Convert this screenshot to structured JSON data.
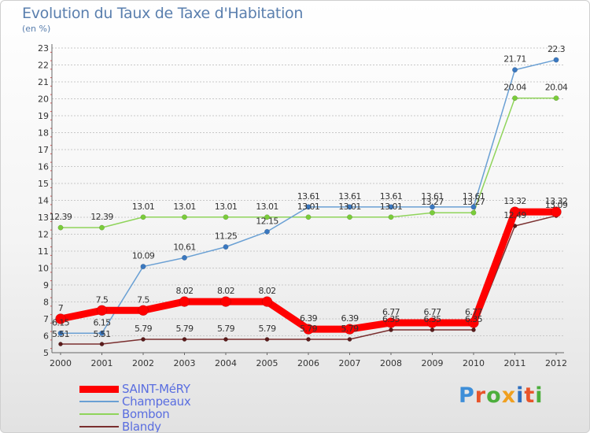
{
  "title": "Evolution du Taux de Taxe d'Habitation",
  "subtitle": "(en %)",
  "logo": {
    "text": "Proxiti",
    "letter_colors": [
      "#3e8ed8",
      "#e8542a",
      "#4cae3c",
      "#f0a020",
      "#2e6fc0",
      "#e8542a",
      "#4cae3c"
    ]
  },
  "chart_data": {
    "type": "line",
    "title": "Evolution du Taux de Taxe d'Habitation",
    "ylabel": "(en %)",
    "xlabel": "",
    "x": [
      "2000",
      "2001",
      "2002",
      "2003",
      "2004",
      "2005",
      "2006",
      "2007",
      "2008",
      "2009",
      "2010",
      "2011",
      "2012"
    ],
    "ylim": [
      5,
      23
    ],
    "yticks": [
      "5",
      "6",
      "7",
      "8",
      "9",
      "10",
      "11",
      "12",
      "13",
      "14",
      "15",
      "16",
      "17",
      "18",
      "19",
      "20",
      "21",
      "22",
      "23"
    ],
    "grid": "horizontal dashed",
    "legend_position": "bottom-left",
    "series": [
      {
        "name": "Blandy",
        "color": "#7a2f2f",
        "values": [
          5.51,
          5.51,
          5.79,
          5.79,
          5.79,
          5.79,
          5.79,
          5.79,
          6.35,
          6.35,
          6.35,
          12.49,
          13.09
        ],
        "labels": [
          "5.51",
          "5.51",
          "5.79",
          "5.79",
          "5.79",
          "5.79",
          "5.79",
          "5.79",
          "6.35",
          "6.35",
          "6.35",
          "12.49",
          "13.09"
        ],
        "show_labels": [
          false,
          false,
          true,
          true,
          true,
          true,
          true,
          true,
          true,
          true,
          true,
          true,
          true
        ]
      },
      {
        "name": "Bombon",
        "color": "#8fd45a",
        "values": [
          12.39,
          12.39,
          13.01,
          13.01,
          13.01,
          13.01,
          13.01,
          13.01,
          13.01,
          13.27,
          13.27,
          20.04,
          20.04
        ],
        "labels": [
          "12.39",
          "12.39",
          "13.01",
          "13.01",
          "13.01",
          "13.01",
          "13.01",
          "13.01",
          "13.01",
          "13.27",
          "13.27",
          "20.04",
          "20.04"
        ],
        "show_labels": [
          true,
          true,
          true,
          true,
          true,
          true,
          true,
          true,
          true,
          true,
          true,
          true,
          true
        ]
      },
      {
        "name": "Champeaux",
        "color": "#6aa0d4",
        "values": [
          6.15,
          6.15,
          10.09,
          10.61,
          11.25,
          12.15,
          13.61,
          13.61,
          13.61,
          13.61,
          13.61,
          21.71,
          22.3
        ],
        "labels": [
          "6.15",
          "6.15",
          "10.09",
          "10.61",
          "11.25",
          "12.15",
          "13.61",
          "13.61",
          "13.61",
          "13.61",
          "13.61",
          "21.71",
          "22.3"
        ],
        "show_labels": [
          true,
          true,
          true,
          true,
          true,
          true,
          true,
          true,
          true,
          true,
          true,
          true,
          true
        ]
      },
      {
        "name": "SAINT-MéRY",
        "color": "#ff0000",
        "values": [
          7,
          7.5,
          7.5,
          8.02,
          8.02,
          8.02,
          6.39,
          6.39,
          6.77,
          6.77,
          6.77,
          13.32,
          13.32
        ],
        "labels": [
          "7",
          "7.5",
          "7.5",
          "8.02",
          "8.02",
          "8.02",
          "6.39",
          "6.39",
          "6.77",
          "6.77",
          "6.77",
          "13.32",
          "13.32"
        ],
        "show_labels": [
          true,
          true,
          true,
          true,
          true,
          true,
          true,
          true,
          true,
          true,
          true,
          true,
          true
        ]
      }
    ],
    "legend_order": [
      "SAINT-MéRY",
      "Champeaux",
      "Bombon",
      "Blandy"
    ]
  }
}
